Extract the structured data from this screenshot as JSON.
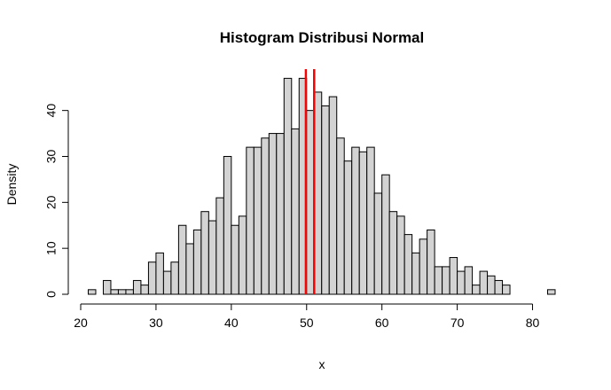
{
  "chart_data": {
    "type": "bar",
    "title": "Histogram Distribusi Normal",
    "xlabel": "x",
    "ylabel": "Density",
    "xlim": [
      20,
      83
    ],
    "ylim": [
      0,
      49
    ],
    "x_ticks": [
      20,
      30,
      40,
      50,
      60,
      70,
      80
    ],
    "y_ticks": [
      0,
      10,
      20,
      30,
      40
    ],
    "bin_width": 1,
    "bin_start": 21,
    "values": [
      1,
      0,
      3,
      1,
      1,
      1,
      3,
      2,
      7,
      9,
      5,
      7,
      15,
      11,
      14,
      18,
      16,
      21,
      30,
      15,
      17,
      32,
      32,
      34,
      35,
      35,
      47,
      36,
      47,
      40,
      44,
      41,
      43,
      34,
      29,
      32,
      31,
      32,
      22,
      26,
      18,
      17,
      13,
      9,
      12,
      14,
      6,
      6,
      8,
      5,
      6,
      2,
      5,
      4,
      3,
      2,
      0,
      0,
      0,
      0,
      0,
      1
    ],
    "bar_fill": "#d3d3d3",
    "bar_stroke": "#000000",
    "vlines": [
      {
        "x": 49.9,
        "color": "#ff0000"
      },
      {
        "x": 51.0,
        "color": "#ff0000"
      }
    ],
    "grid": false,
    "legend": "none"
  }
}
